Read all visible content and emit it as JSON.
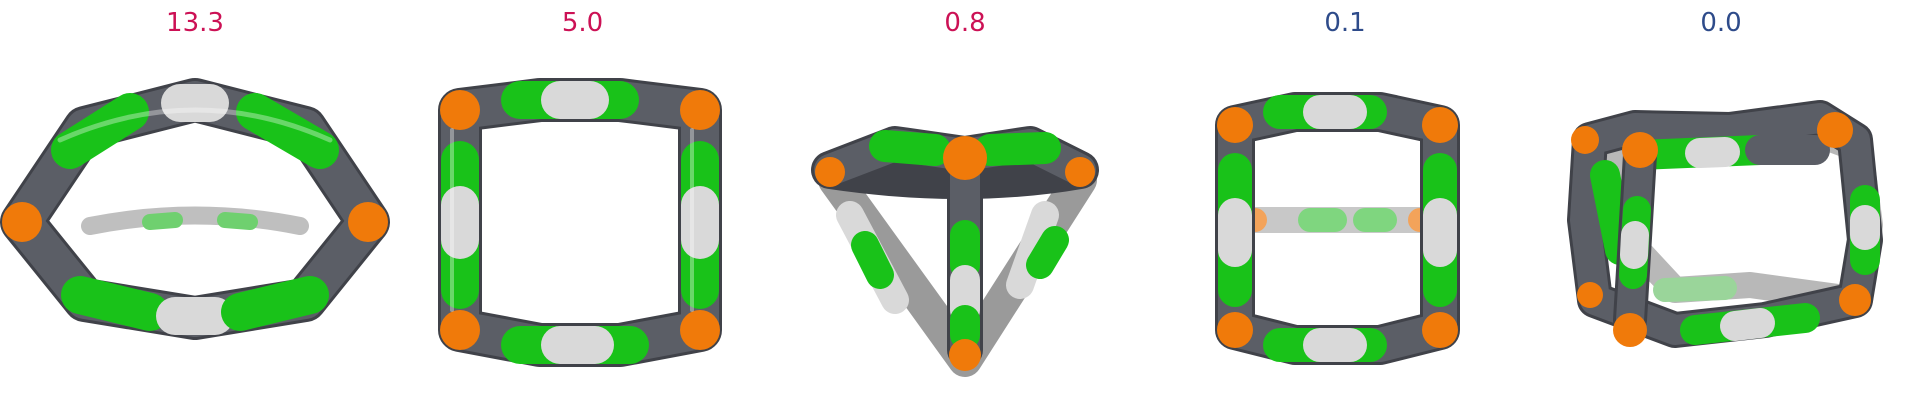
{
  "colors": {
    "green": "#19c219",
    "grey": "#5b5e66",
    "light": "#d9d9d9",
    "orange": "#f07a0a",
    "label_red": "#cc1155",
    "label_blue": "#2e4b8a"
  },
  "structures": [
    {
      "label": "13.3",
      "label_color": "#cc1155",
      "shape": "flattened-ring"
    },
    {
      "label": "5.0",
      "label_color": "#cc1155",
      "shape": "square-frame"
    },
    {
      "label": "0.8",
      "label_color": "#cc1155",
      "shape": "trigonal-cage"
    },
    {
      "label": "0.1",
      "label_color": "#2e4b8a",
      "shape": "cube-front-view"
    },
    {
      "label": "0.0",
      "label_color": "#2e4b8a",
      "shape": "cube-tilted"
    }
  ]
}
